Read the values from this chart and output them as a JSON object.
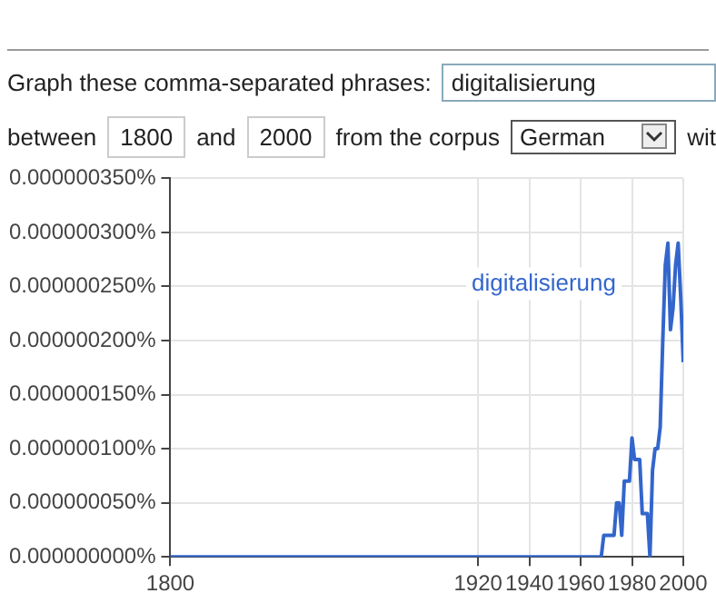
{
  "chart_data": {
    "type": "line",
    "annotations": [
      "Graph these comma-separated phrases:",
      "digitalisierung",
      "between",
      "1800",
      "and",
      "2000",
      "from the corpus",
      "German",
      "wit"
    ],
    "x": [
      1800,
      1968,
      1969,
      1973,
      1974,
      1975,
      1976,
      1977,
      1979,
      1980,
      1981,
      1983,
      1984,
      1986,
      1987,
      1988,
      1989,
      1990,
      1991,
      1992,
      1993,
      1994,
      1995,
      1996,
      1997,
      1998,
      1999,
      2000
    ],
    "series": [
      {
        "name": "digitalisierung",
        "color": "#3366cc",
        "values": [
          0,
          0,
          2e-08,
          2e-08,
          5e-08,
          5e-08,
          2e-08,
          7e-08,
          7e-08,
          1.1e-07,
          9e-08,
          9e-08,
          4e-08,
          4e-08,
          0,
          8e-08,
          1e-07,
          1e-07,
          1.2e-07,
          2e-07,
          2.7e-07,
          2.9e-07,
          2.1e-07,
          2.3e-07,
          2.7e-07,
          2.9e-07,
          2.4e-07,
          1.8e-07
        ]
      }
    ],
    "xlim": [
      1800,
      2000
    ],
    "xticks": [
      1800,
      1920,
      1940,
      1960,
      1980,
      2000
    ],
    "ylim": [
      0,
      3.5e-07
    ],
    "yticks": [
      {
        "value": 0,
        "label": "0.000000000%"
      },
      {
        "value": 5e-08,
        "label": "0.000000050%"
      },
      {
        "value": 1e-07,
        "label": "0.000000100%"
      },
      {
        "value": 1.5e-07,
        "label": "0.000000150%"
      },
      {
        "value": 2e-07,
        "label": "0.000000200%"
      },
      {
        "value": 2.5e-07,
        "label": "0.000000250%"
      },
      {
        "value": 3e-07,
        "label": "0.000000300%"
      },
      {
        "value": 3.5e-07,
        "label": "0.000000350%"
      }
    ],
    "grid": true,
    "legend": "top right",
    "marker": "none",
    "line_style": "solid"
  }
}
